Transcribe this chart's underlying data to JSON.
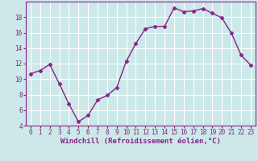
{
  "x": [
    0,
    1,
    2,
    3,
    4,
    5,
    6,
    7,
    8,
    9,
    10,
    11,
    12,
    13,
    14,
    15,
    16,
    17,
    18,
    19,
    20,
    21,
    22,
    23
  ],
  "y": [
    10.7,
    11.1,
    11.9,
    9.4,
    6.8,
    4.5,
    5.3,
    7.3,
    7.9,
    8.9,
    12.3,
    14.6,
    16.5,
    16.8,
    16.8,
    19.2,
    18.7,
    18.8,
    19.1,
    18.5,
    17.9,
    15.9,
    13.1,
    11.8
  ],
  "line_color": "#882288",
  "marker": "D",
  "markersize": 2.5,
  "linewidth": 1.0,
  "bg_color": "#cce8e8",
  "grid_color": "#ffffff",
  "xlabel": "Windchill (Refroidissement éolien,°C)",
  "xlabel_color": "#882288",
  "xlabel_fontsize": 6.5,
  "ylim": [
    4,
    20
  ],
  "xlim": [
    -0.5,
    23.5
  ],
  "yticks": [
    4,
    6,
    8,
    10,
    12,
    14,
    16,
    18
  ],
  "xticks": [
    0,
    1,
    2,
    3,
    4,
    5,
    6,
    7,
    8,
    9,
    10,
    11,
    12,
    13,
    14,
    15,
    16,
    17,
    18,
    19,
    20,
    21,
    22,
    23
  ],
  "tick_fontsize": 5.5,
  "tick_color": "#882288",
  "axis_color": "#882288"
}
